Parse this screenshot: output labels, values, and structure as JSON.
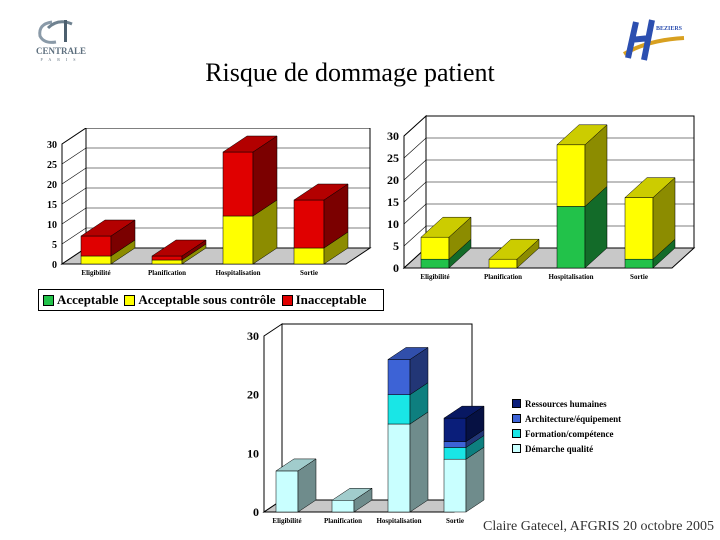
{
  "title": "Risque de dommage patient",
  "footer": "Claire Gatecel, AFGRIS 20 octobre 2005",
  "logos": {
    "left": {
      "text": "CENTRALE",
      "subtext": "PARIS",
      "icon": "centrale-paris-logo"
    },
    "right": {
      "text": "BEZIERS",
      "icon": "hopital-beziers-logo"
    }
  },
  "colors": {
    "acceptable": "#22c24a",
    "acceptable_sous_controle": "#ffff00",
    "inacceptable": "#e00000",
    "ressources_humaines": "#0a1e7a",
    "architecture_equipement": "#3d63d6",
    "formation_competence": "#19e6e6",
    "demarche_qualite": "#c9ffff"
  },
  "legend_top": [
    {
      "label": "Acceptable",
      "color_key": "acceptable"
    },
    {
      "label": "Acceptable sous contrôle",
      "color_key": "acceptable_sous_controle"
    },
    {
      "label": "Inacceptable",
      "color_key": "inacceptable"
    }
  ],
  "legend_bottom": [
    {
      "label": "Ressources humaines",
      "color_key": "ressources_humaines"
    },
    {
      "label": "Architecture/équipement",
      "color_key": "architecture_equipement"
    },
    {
      "label": "Formation/compétence",
      "color_key": "formation_competence"
    },
    {
      "label": "Démarche qualité",
      "color_key": "demarche_qualite"
    }
  ],
  "chart_data": [
    {
      "type": "bar",
      "stacked": true,
      "style": "3d",
      "categories": [
        "Eligibilité",
        "Planification",
        "Hospitalisation",
        "Sortie"
      ],
      "series": [
        {
          "name": "Acceptable",
          "values": [
            0,
            0,
            0,
            0
          ]
        },
        {
          "name": "Acceptable sous contrôle",
          "values": [
            2,
            1,
            12,
            4
          ]
        },
        {
          "name": "Inacceptable",
          "values": [
            5,
            1,
            16,
            12
          ]
        }
      ],
      "ylim": [
        0,
        30
      ],
      "yticks": [
        "0",
        "5",
        "10",
        "15",
        "20",
        "25",
        "30"
      ],
      "grid": true
    },
    {
      "type": "bar",
      "stacked": true,
      "style": "3d",
      "categories": [
        "Eligibilité",
        "Planification",
        "Hospitalisation",
        "Sortie"
      ],
      "series": [
        {
          "name": "Acceptable",
          "values": [
            2,
            0,
            14,
            2
          ]
        },
        {
          "name": "Acceptable sous contrôle",
          "values": [
            5,
            2,
            14,
            14
          ]
        },
        {
          "name": "Inacceptable",
          "values": [
            0,
            0,
            0,
            0
          ]
        }
      ],
      "ylim": [
        0,
        30
      ],
      "yticks": [
        "0",
        "5",
        "10",
        "15",
        "20",
        "25",
        "30"
      ],
      "grid": true
    },
    {
      "type": "bar",
      "stacked": true,
      "style": "3d",
      "categories": [
        "Eligibilité",
        "Planification",
        "Hospitalisation",
        "Sortie"
      ],
      "series": [
        {
          "name": "Démarche qualité",
          "values": [
            7,
            2,
            15,
            9
          ]
        },
        {
          "name": "Formation/compétence",
          "values": [
            0,
            0,
            5,
            2
          ]
        },
        {
          "name": "Architecture/équipement",
          "values": [
            0,
            0,
            6,
            1
          ]
        },
        {
          "name": "Ressources humaines",
          "values": [
            0,
            0,
            0,
            4
          ]
        }
      ],
      "ylim": [
        0,
        30
      ],
      "yticks": [
        "0",
        "10",
        "20",
        "30"
      ],
      "grid": false,
      "legend": "right"
    }
  ]
}
